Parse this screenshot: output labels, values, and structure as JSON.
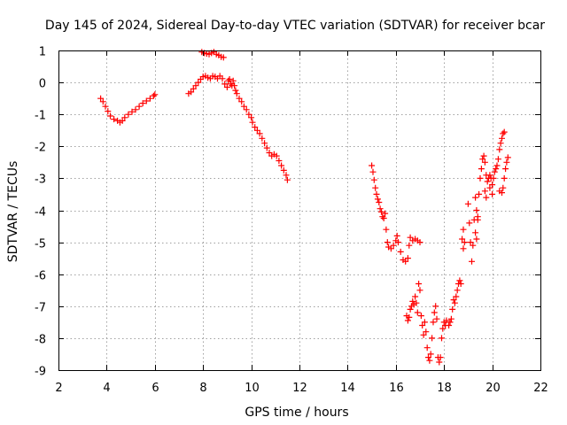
{
  "chart_data": {
    "type": "scatter",
    "title": "Day 145 of 2024, Sidereal Day-to-day VTEC variation (SDTVAR) for receiver bcar",
    "xlabel": "GPS time / hours",
    "ylabel": "SDTVAR / TECUs",
    "xlim": [
      2,
      22
    ],
    "ylim": [
      -9,
      1
    ],
    "xticks": [
      2,
      4,
      6,
      8,
      10,
      12,
      14,
      16,
      18,
      20,
      22
    ],
    "yticks": [
      -9,
      -8,
      -7,
      -6,
      -5,
      -4,
      -3,
      -2,
      -1,
      0,
      1
    ],
    "grid": true,
    "marker": "+",
    "color": "#ff0000",
    "series": [
      {
        "name": "SDTVAR",
        "points": [
          [
            3.75,
            -0.5
          ],
          [
            3.85,
            -0.6
          ],
          [
            3.95,
            -0.75
          ],
          [
            4.05,
            -0.9
          ],
          [
            4.15,
            -1.05
          ],
          [
            4.3,
            -1.15
          ],
          [
            4.45,
            -1.2
          ],
          [
            4.55,
            -1.25
          ],
          [
            4.65,
            -1.2
          ],
          [
            4.75,
            -1.1
          ],
          [
            4.9,
            -1.0
          ],
          [
            5.05,
            -0.92
          ],
          [
            5.2,
            -0.85
          ],
          [
            5.35,
            -0.75
          ],
          [
            5.5,
            -0.65
          ],
          [
            5.65,
            -0.58
          ],
          [
            5.8,
            -0.5
          ],
          [
            5.95,
            -0.42
          ],
          [
            6.0,
            -0.38
          ],
          [
            7.4,
            -0.35
          ],
          [
            7.5,
            -0.3
          ],
          [
            7.6,
            -0.2
          ],
          [
            7.7,
            -0.1
          ],
          [
            7.8,
            0.0
          ],
          [
            7.9,
            0.1
          ],
          [
            8.0,
            0.18
          ],
          [
            8.1,
            0.2
          ],
          [
            8.2,
            0.15
          ],
          [
            8.3,
            0.12
          ],
          [
            8.4,
            0.2
          ],
          [
            8.5,
            0.18
          ],
          [
            8.6,
            0.12
          ],
          [
            8.7,
            0.2
          ],
          [
            8.8,
            0.12
          ],
          [
            7.95,
            0.95
          ],
          [
            8.05,
            0.92
          ],
          [
            8.15,
            0.9
          ],
          [
            8.25,
            0.88
          ],
          [
            8.35,
            0.92
          ],
          [
            8.45,
            0.95
          ],
          [
            8.55,
            0.88
          ],
          [
            8.65,
            0.85
          ],
          [
            8.75,
            0.8
          ],
          [
            8.85,
            0.78
          ],
          [
            8.9,
            -0.05
          ],
          [
            9.0,
            -0.15
          ],
          [
            9.05,
            0.05
          ],
          [
            9.1,
            0.1
          ],
          [
            9.15,
            -0.05
          ],
          [
            9.2,
            -0.1
          ],
          [
            9.25,
            0.05
          ],
          [
            9.3,
            -0.1
          ],
          [
            9.35,
            -0.25
          ],
          [
            9.4,
            -0.35
          ],
          [
            9.5,
            -0.5
          ],
          [
            9.6,
            -0.6
          ],
          [
            9.7,
            -0.75
          ],
          [
            9.8,
            -0.85
          ],
          [
            9.9,
            -1.0
          ],
          [
            10.0,
            -1.1
          ],
          [
            10.05,
            -1.25
          ],
          [
            10.15,
            -1.4
          ],
          [
            10.25,
            -1.5
          ],
          [
            10.35,
            -1.6
          ],
          [
            10.45,
            -1.75
          ],
          [
            10.55,
            -1.9
          ],
          [
            10.65,
            -2.05
          ],
          [
            10.75,
            -2.2
          ],
          [
            10.85,
            -2.3
          ],
          [
            10.95,
            -2.25
          ],
          [
            11.05,
            -2.3
          ],
          [
            11.15,
            -2.45
          ],
          [
            11.25,
            -2.6
          ],
          [
            11.35,
            -2.75
          ],
          [
            11.45,
            -2.9
          ],
          [
            11.5,
            -3.05
          ],
          [
            15.0,
            -2.6
          ],
          [
            15.05,
            -2.8
          ],
          [
            15.1,
            -3.05
          ],
          [
            15.15,
            -3.3
          ],
          [
            15.2,
            -3.5
          ],
          [
            15.25,
            -3.65
          ],
          [
            15.3,
            -3.75
          ],
          [
            15.35,
            -3.95
          ],
          [
            15.4,
            -4.05
          ],
          [
            15.45,
            -4.2
          ],
          [
            15.5,
            -4.25
          ],
          [
            15.55,
            -4.1
          ],
          [
            15.6,
            -4.6
          ],
          [
            15.65,
            -5.0
          ],
          [
            15.7,
            -5.15
          ],
          [
            15.8,
            -5.2
          ],
          [
            15.9,
            -5.1
          ],
          [
            16.0,
            -4.95
          ],
          [
            16.05,
            -4.8
          ],
          [
            16.1,
            -5.0
          ],
          [
            16.2,
            -5.3
          ],
          [
            16.3,
            -5.55
          ],
          [
            16.4,
            -5.6
          ],
          [
            16.5,
            -5.5
          ],
          [
            16.55,
            -5.1
          ],
          [
            16.6,
            -4.85
          ],
          [
            16.7,
            -4.95
          ],
          [
            16.8,
            -4.9
          ],
          [
            16.9,
            -4.95
          ],
          [
            17.0,
            -5.0
          ],
          [
            16.45,
            -7.3
          ],
          [
            16.5,
            -7.45
          ],
          [
            16.55,
            -7.35
          ],
          [
            16.6,
            -7.1
          ],
          [
            16.65,
            -7.0
          ],
          [
            16.7,
            -6.85
          ],
          [
            16.75,
            -6.95
          ],
          [
            16.8,
            -6.7
          ],
          [
            16.85,
            -6.9
          ],
          [
            16.9,
            -7.2
          ],
          [
            16.95,
            -6.3
          ],
          [
            17.0,
            -6.5
          ],
          [
            17.05,
            -7.3
          ],
          [
            17.1,
            -7.6
          ],
          [
            17.15,
            -7.9
          ],
          [
            17.2,
            -7.5
          ],
          [
            17.25,
            -7.8
          ],
          [
            17.3,
            -8.3
          ],
          [
            17.35,
            -8.6
          ],
          [
            17.4,
            -8.7
          ],
          [
            17.45,
            -8.5
          ],
          [
            17.5,
            -8.0
          ],
          [
            17.55,
            -7.5
          ],
          [
            17.6,
            -7.2
          ],
          [
            17.65,
            -7.0
          ],
          [
            17.7,
            -7.4
          ],
          [
            17.75,
            -8.6
          ],
          [
            17.8,
            -8.75
          ],
          [
            17.85,
            -8.6
          ],
          [
            17.9,
            -8.0
          ],
          [
            17.95,
            -7.7
          ],
          [
            18.0,
            -7.5
          ],
          [
            18.05,
            -7.6
          ],
          [
            18.1,
            -7.45
          ],
          [
            18.2,
            -7.6
          ],
          [
            18.25,
            -7.5
          ],
          [
            18.3,
            -7.4
          ],
          [
            18.35,
            -7.1
          ],
          [
            18.4,
            -6.8
          ],
          [
            18.45,
            -6.9
          ],
          [
            18.5,
            -6.7
          ],
          [
            18.55,
            -6.5
          ],
          [
            18.6,
            -6.3
          ],
          [
            18.65,
            -6.2
          ],
          [
            18.7,
            -6.3
          ],
          [
            18.75,
            -4.9
          ],
          [
            18.8,
            -4.6
          ],
          [
            18.85,
            -5.0
          ],
          [
            18.8,
            -5.2
          ],
          [
            19.0,
            -3.8
          ],
          [
            19.05,
            -4.4
          ],
          [
            19.1,
            -5.0
          ],
          [
            19.15,
            -5.6
          ],
          [
            19.2,
            -5.1
          ],
          [
            19.25,
            -4.3
          ],
          [
            19.3,
            -3.6
          ],
          [
            19.35,
            -4.0
          ],
          [
            19.4,
            -4.2
          ],
          [
            19.45,
            -3.5
          ],
          [
            19.5,
            -3.0
          ],
          [
            19.55,
            -2.7
          ],
          [
            19.6,
            -2.4
          ],
          [
            19.65,
            -2.3
          ],
          [
            19.7,
            -2.5
          ],
          [
            19.75,
            -2.9
          ],
          [
            19.8,
            -3.1
          ],
          [
            19.85,
            -3.0
          ],
          [
            19.9,
            -2.9
          ],
          [
            19.95,
            -3.0
          ],
          [
            20.0,
            -3.2
          ],
          [
            20.05,
            -3.0
          ],
          [
            20.1,
            -2.8
          ],
          [
            20.15,
            -2.7
          ],
          [
            20.2,
            -2.6
          ],
          [
            20.25,
            -2.4
          ],
          [
            20.3,
            -2.1
          ],
          [
            20.35,
            -1.9
          ],
          [
            20.4,
            -1.75
          ],
          [
            20.45,
            -1.6
          ],
          [
            20.5,
            -1.55
          ],
          [
            20.3,
            -3.4
          ],
          [
            20.4,
            -3.45
          ],
          [
            20.45,
            -3.3
          ],
          [
            20.5,
            -3.0
          ],
          [
            20.55,
            -2.7
          ],
          [
            20.6,
            -2.5
          ],
          [
            20.65,
            -2.35
          ],
          [
            19.7,
            -3.4
          ],
          [
            19.75,
            -3.6
          ],
          [
            19.3,
            -4.7
          ],
          [
            19.35,
            -4.9
          ],
          [
            19.4,
            -4.3
          ],
          [
            19.9,
            -3.3
          ],
          [
            20.0,
            -3.5
          ]
        ]
      }
    ]
  }
}
